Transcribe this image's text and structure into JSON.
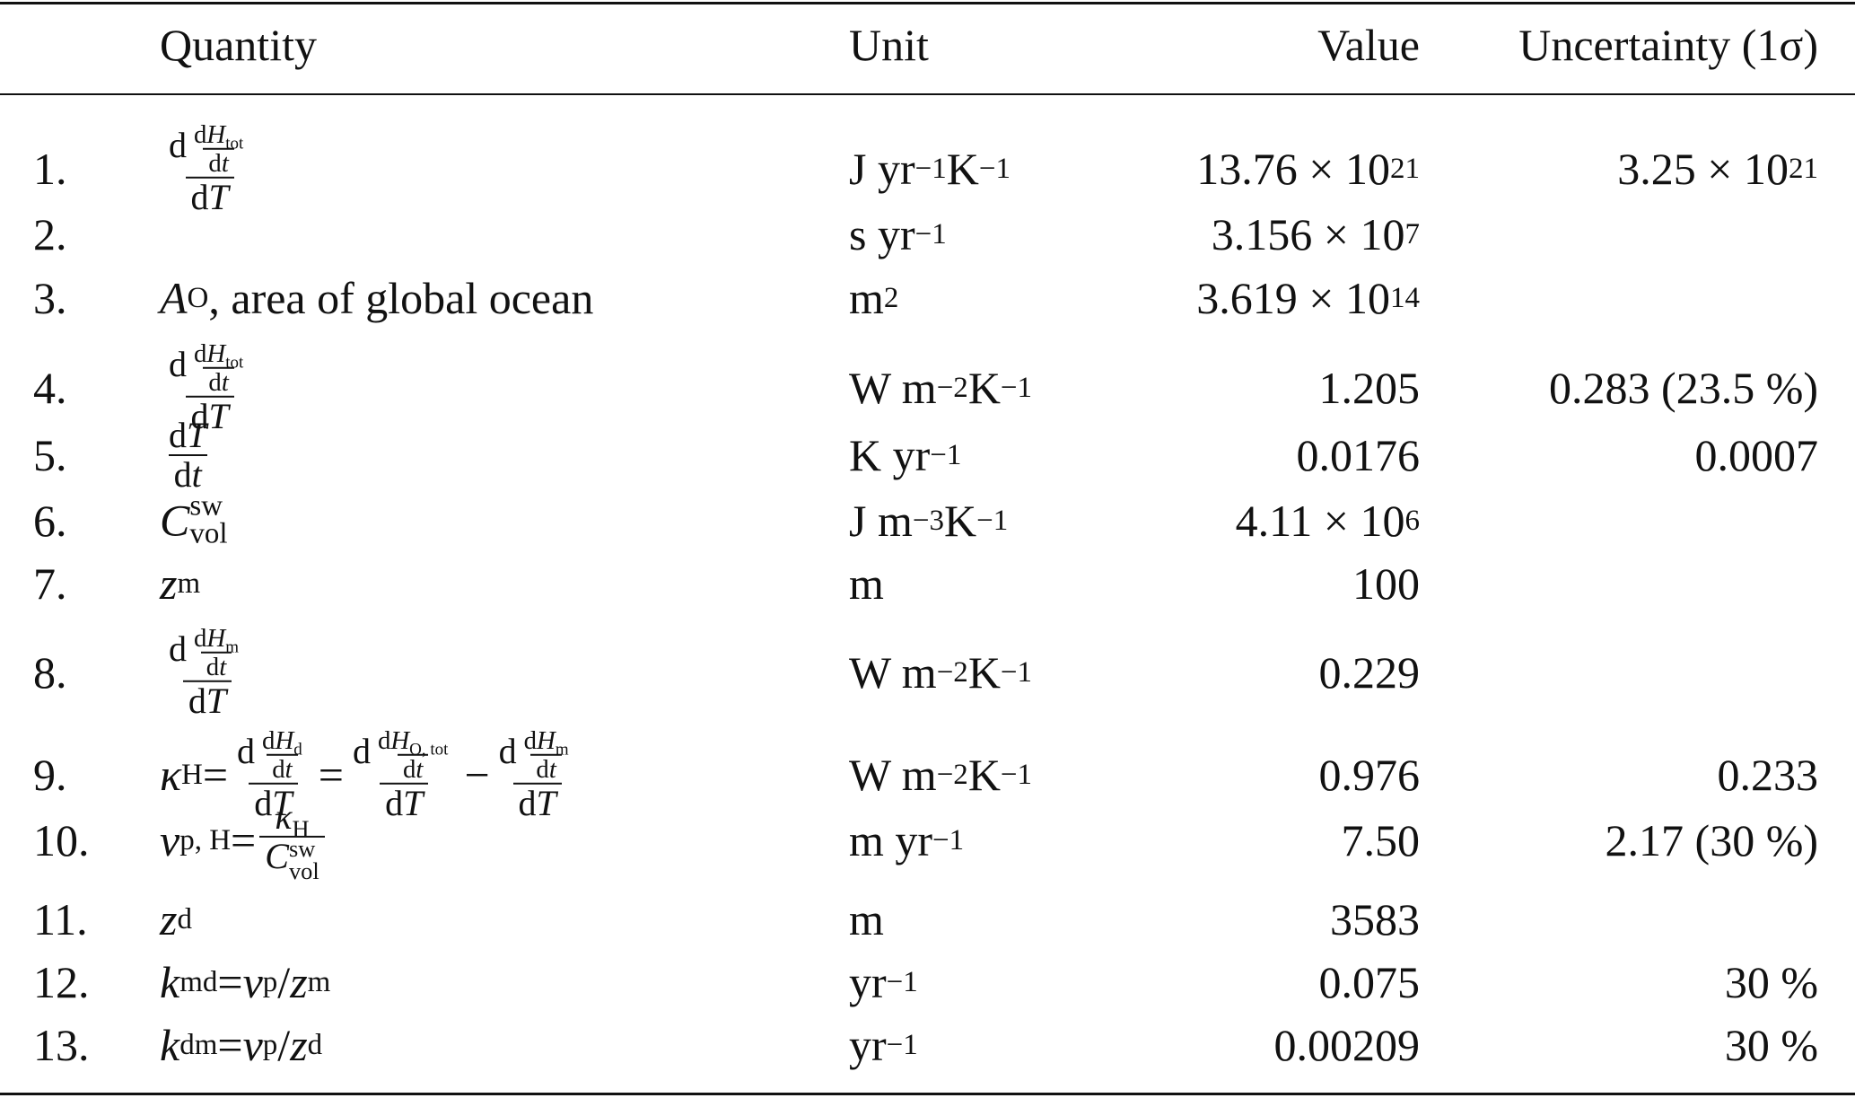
{
  "table": {
    "header": [
      "Quantity",
      "Unit",
      "Value",
      "Uncertainty (1σ)"
    ],
    "rows": [
      {
        "number": "1.",
        "quantity": [
          {
            "frac": [
              [
                "d",
                {
                  "frac": [
                    [
                      "d",
                      {
                        "i": "H"
                      },
                      {
                        "sub": "tot"
                      }
                    ],
                    [
                      "d",
                      {
                        "i": "t"
                      }
                    ]
                  ]
                }
              ],
              [
                "d",
                {
                  "i": "T"
                }
              ]
            ]
          }
        ],
        "unit": [
          "J yr",
          {
            "sup": "−1"
          },
          " K",
          {
            "sup": "−1"
          }
        ],
        "value": [
          "13.76 × 10",
          {
            "sup": "21"
          }
        ],
        "uncertainty": [
          "3.25 × 10",
          {
            "sup": "21"
          }
        ]
      },
      {
        "number": "2.",
        "unit": [
          "s yr",
          {
            "sup": "−1"
          }
        ],
        "value": [
          "3.156 × 10",
          {
            "sup": "7"
          }
        ]
      },
      {
        "number": "3.",
        "quantity": [
          {
            "i": "A"
          },
          {
            "sub": "O"
          },
          ", area of global ocean"
        ],
        "unit": [
          "m",
          {
            "sup": "2"
          }
        ],
        "value": [
          "3.619 × 10",
          {
            "sup": "14"
          }
        ]
      },
      {
        "number": "4.",
        "quantity": [
          {
            "frac": [
              [
                "d",
                {
                  "frac": [
                    [
                      "d",
                      {
                        "i": "H"
                      },
                      {
                        "sub": "tot"
                      }
                    ],
                    [
                      "d",
                      {
                        "i": "t"
                      }
                    ]
                  ]
                }
              ],
              [
                "d",
                {
                  "i": "T"
                }
              ]
            ]
          }
        ],
        "unit": [
          "W m",
          {
            "sup": "−2"
          },
          " K",
          {
            "sup": "−1"
          }
        ],
        "value": [
          "1.205"
        ],
        "uncertainty": [
          "0.283 (23.5 %)"
        ]
      },
      {
        "number": "5.",
        "quantity": [
          {
            "frac": [
              [
                "d",
                {
                  "i": "T"
                }
              ],
              [
                "d",
                {
                  "i": "t"
                }
              ]
            ]
          }
        ],
        "unit": [
          "K yr",
          {
            "sup": "−1"
          }
        ],
        "value": [
          "0.0176"
        ],
        "uncertainty": [
          "0.0007"
        ]
      },
      {
        "number": "6.",
        "quantity": [
          {
            "i": "C"
          },
          {
            "ss": [
              "sw",
              "vol"
            ]
          }
        ],
        "unit": [
          "J m",
          {
            "sup": "−3"
          },
          " K",
          {
            "sup": "−1"
          }
        ],
        "value": [
          "4.11 × 10",
          {
            "sup": "6"
          }
        ]
      },
      {
        "number": "7.",
        "quantity": [
          {
            "i": "z"
          },
          {
            "sub": "m"
          }
        ],
        "unit": [
          "m"
        ],
        "value": [
          "100"
        ]
      },
      {
        "number": "8.",
        "quantity": [
          {
            "frac": [
              [
                "d",
                {
                  "frac": [
                    [
                      "d",
                      {
                        "i": "H"
                      },
                      {
                        "sub": "m"
                      }
                    ],
                    [
                      "d",
                      {
                        "i": "t"
                      }
                    ]
                  ]
                }
              ],
              [
                "d",
                {
                  "i": "T"
                }
              ]
            ]
          }
        ],
        "unit": [
          "W m",
          {
            "sup": "−2"
          },
          " K",
          {
            "sup": "−1"
          }
        ],
        "value": [
          "0.229"
        ]
      },
      {
        "number": "9.",
        "quantity": [
          {
            "i": "κ"
          },
          {
            "sub": "H"
          },
          " = ",
          {
            "frac": [
              [
                "d",
                {
                  "frac": [
                    [
                      "d",
                      {
                        "i": "H"
                      },
                      {
                        "sub": "d"
                      }
                    ],
                    [
                      "d",
                      {
                        "i": "t"
                      }
                    ]
                  ]
                }
              ],
              [
                "d",
                {
                  "i": "T"
                }
              ]
            ]
          },
          " = ",
          {
            "frac": [
              [
                "d",
                {
                  "frac": [
                    [
                      "d",
                      {
                        "i": "H"
                      },
                      {
                        "sub": "O, tot"
                      }
                    ],
                    [
                      "d",
                      {
                        "i": "t"
                      }
                    ]
                  ]
                }
              ],
              [
                "d",
                {
                  "i": "T"
                }
              ]
            ]
          },
          " − ",
          {
            "frac": [
              [
                "d",
                {
                  "frac": [
                    [
                      "d",
                      {
                        "i": "H"
                      },
                      {
                        "sub": "m"
                      }
                    ],
                    [
                      "d",
                      {
                        "i": "t"
                      }
                    ]
                  ]
                }
              ],
              [
                "d",
                {
                  "i": "T"
                }
              ]
            ]
          }
        ],
        "unit": [
          "W m",
          {
            "sup": "−2"
          },
          " K",
          {
            "sup": "−1"
          }
        ],
        "value": [
          "0.976"
        ],
        "uncertainty": [
          "0.233"
        ]
      },
      {
        "number": "10.",
        "quantity": [
          {
            "i": "v"
          },
          {
            "sub": "p, H"
          },
          " = ",
          {
            "frac": [
              [
                {
                  "i": "κ"
                },
                {
                  "sub": "H"
                }
              ],
              [
                {
                  "i": "C"
                },
                {
                  "ss": [
                    "sw",
                    "vol"
                  ]
                }
              ]
            ]
          }
        ],
        "unit": [
          "m yr",
          {
            "sup": "−1"
          }
        ],
        "value": [
          "7.50"
        ],
        "uncertainty": [
          "2.17 (30 %)"
        ]
      },
      {
        "number": "11.",
        "quantity": [
          {
            "i": "z"
          },
          {
            "sub": "d"
          }
        ],
        "unit": [
          "m"
        ],
        "value": [
          "3583"
        ]
      },
      {
        "number": "12.",
        "quantity": [
          {
            "i": "k"
          },
          {
            "sub": "md"
          },
          " = ",
          {
            "i": "v"
          },
          {
            "sub": "p"
          },
          "/",
          {
            "i": "z"
          },
          {
            "sub": "m"
          }
        ],
        "unit": [
          "yr",
          {
            "sup": "−1"
          }
        ],
        "value": [
          "0.075"
        ],
        "uncertainty": [
          "30 %"
        ]
      },
      {
        "number": "13.",
        "quantity": [
          {
            "i": "k"
          },
          {
            "sub": "dm"
          },
          " = ",
          {
            "i": "v"
          },
          {
            "sub": "p"
          },
          "/",
          {
            "i": "z"
          },
          {
            "sub": "d"
          }
        ],
        "unit": [
          "yr",
          {
            "sup": "−1"
          }
        ],
        "value": [
          "0.00209"
        ],
        "uncertainty": [
          "30 %"
        ]
      }
    ]
  }
}
